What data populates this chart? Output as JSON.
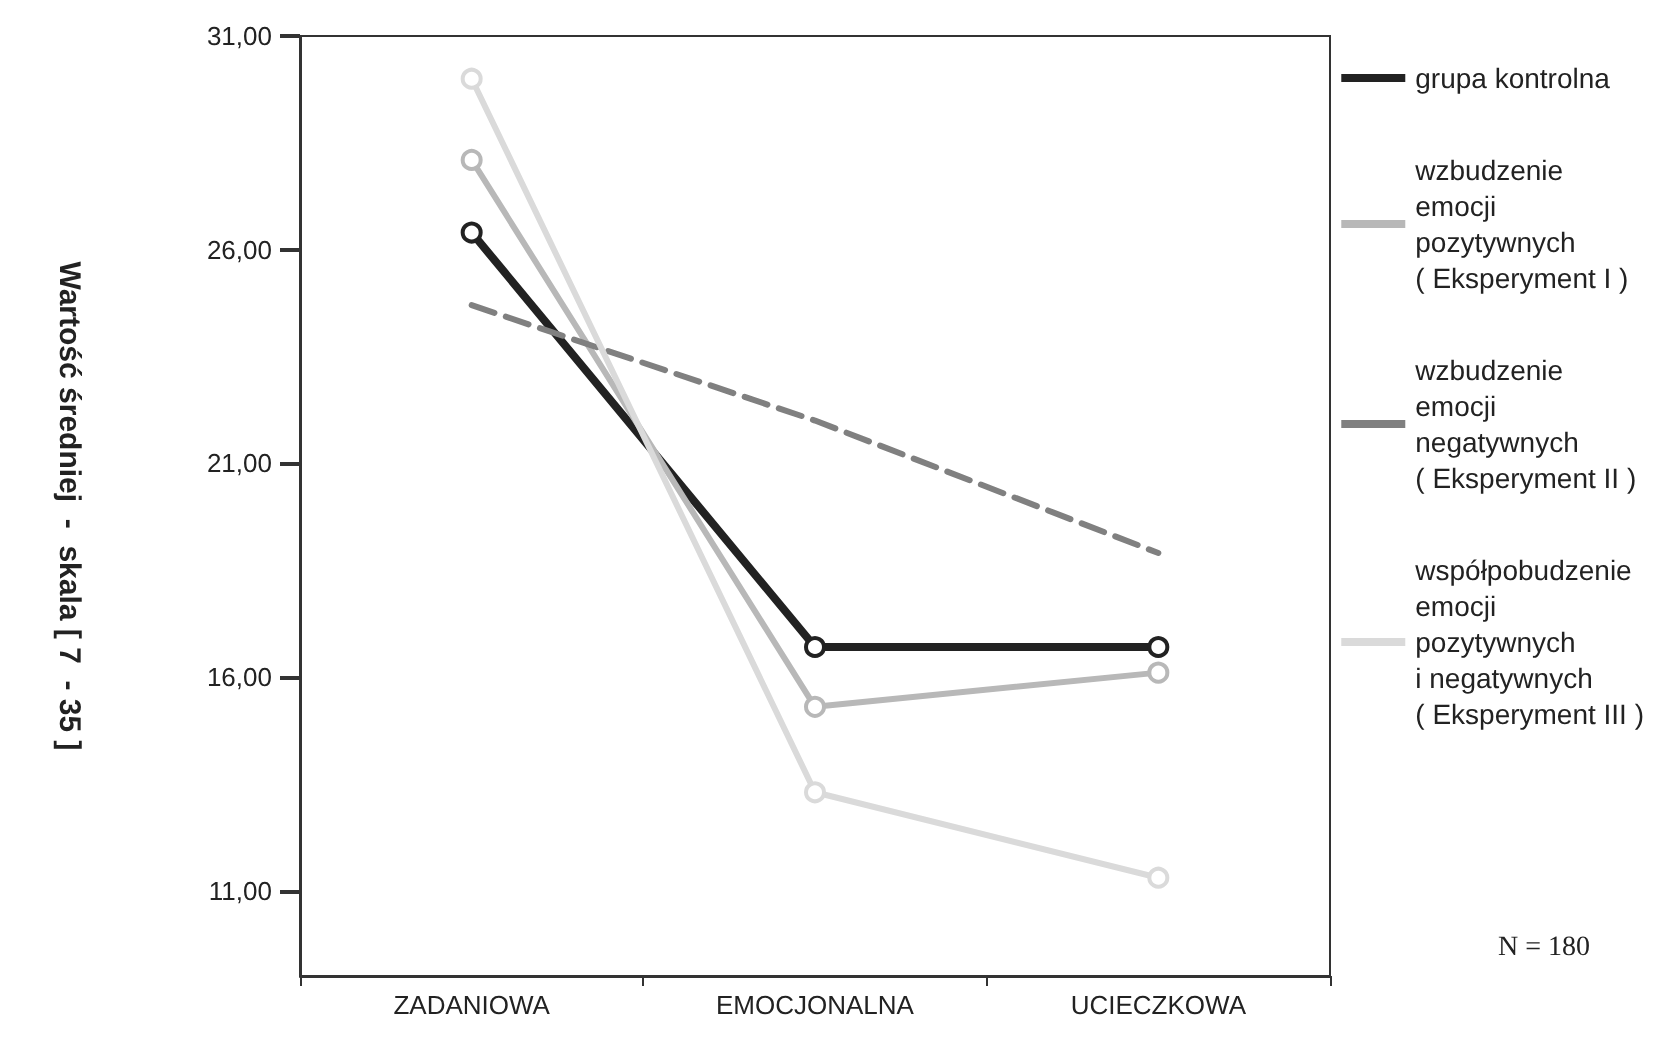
{
  "chart_data": {
    "type": "line",
    "categories": [
      "ZADANIOWA",
      "EMOCJONALNA",
      "UCIECZKOWA"
    ],
    "ylabel": "Wartość średniej  -  skala [ 7  - 35 ]",
    "ylim": [
      9,
      31
    ],
    "yticks": [
      {
        "value": 11,
        "label": "11,00"
      },
      {
        "value": 16,
        "label": "16,00"
      },
      {
        "value": 21,
        "label": "21,00"
      },
      {
        "value": 26,
        "label": "26,00"
      },
      {
        "value": 31,
        "label": "31,00"
      }
    ],
    "series": [
      {
        "name": "grupa kontrolna",
        "color": "#222222",
        "values": [
          26.4,
          16.7,
          16.7
        ],
        "marker": "circle",
        "line_style": "solid"
      },
      {
        "name": "wzbudzenie\nemocji\npozytywnych\n( Eksperyment I )",
        "color": "#b8b8b8",
        "values": [
          28.1,
          15.3,
          16.1
        ],
        "marker": "circle",
        "line_style": "solid"
      },
      {
        "name": "wzbudzenie\nemocji\nnegatywnych\n( Eksperyment II )",
        "color": "#808080",
        "values": [
          24.7,
          22.0,
          18.9
        ],
        "marker": "none",
        "line_style": "dashed"
      },
      {
        "name": "współpobudzenie\nemocji\npozytywnych\ni negatywnych\n( Eksperyment III )",
        "color": "#dadada",
        "values": [
          30.0,
          13.3,
          11.3
        ],
        "marker": "circle",
        "line_style": "solid"
      }
    ],
    "annotations": [
      "N = 180"
    ],
    "legend": "right",
    "grid": false
  }
}
